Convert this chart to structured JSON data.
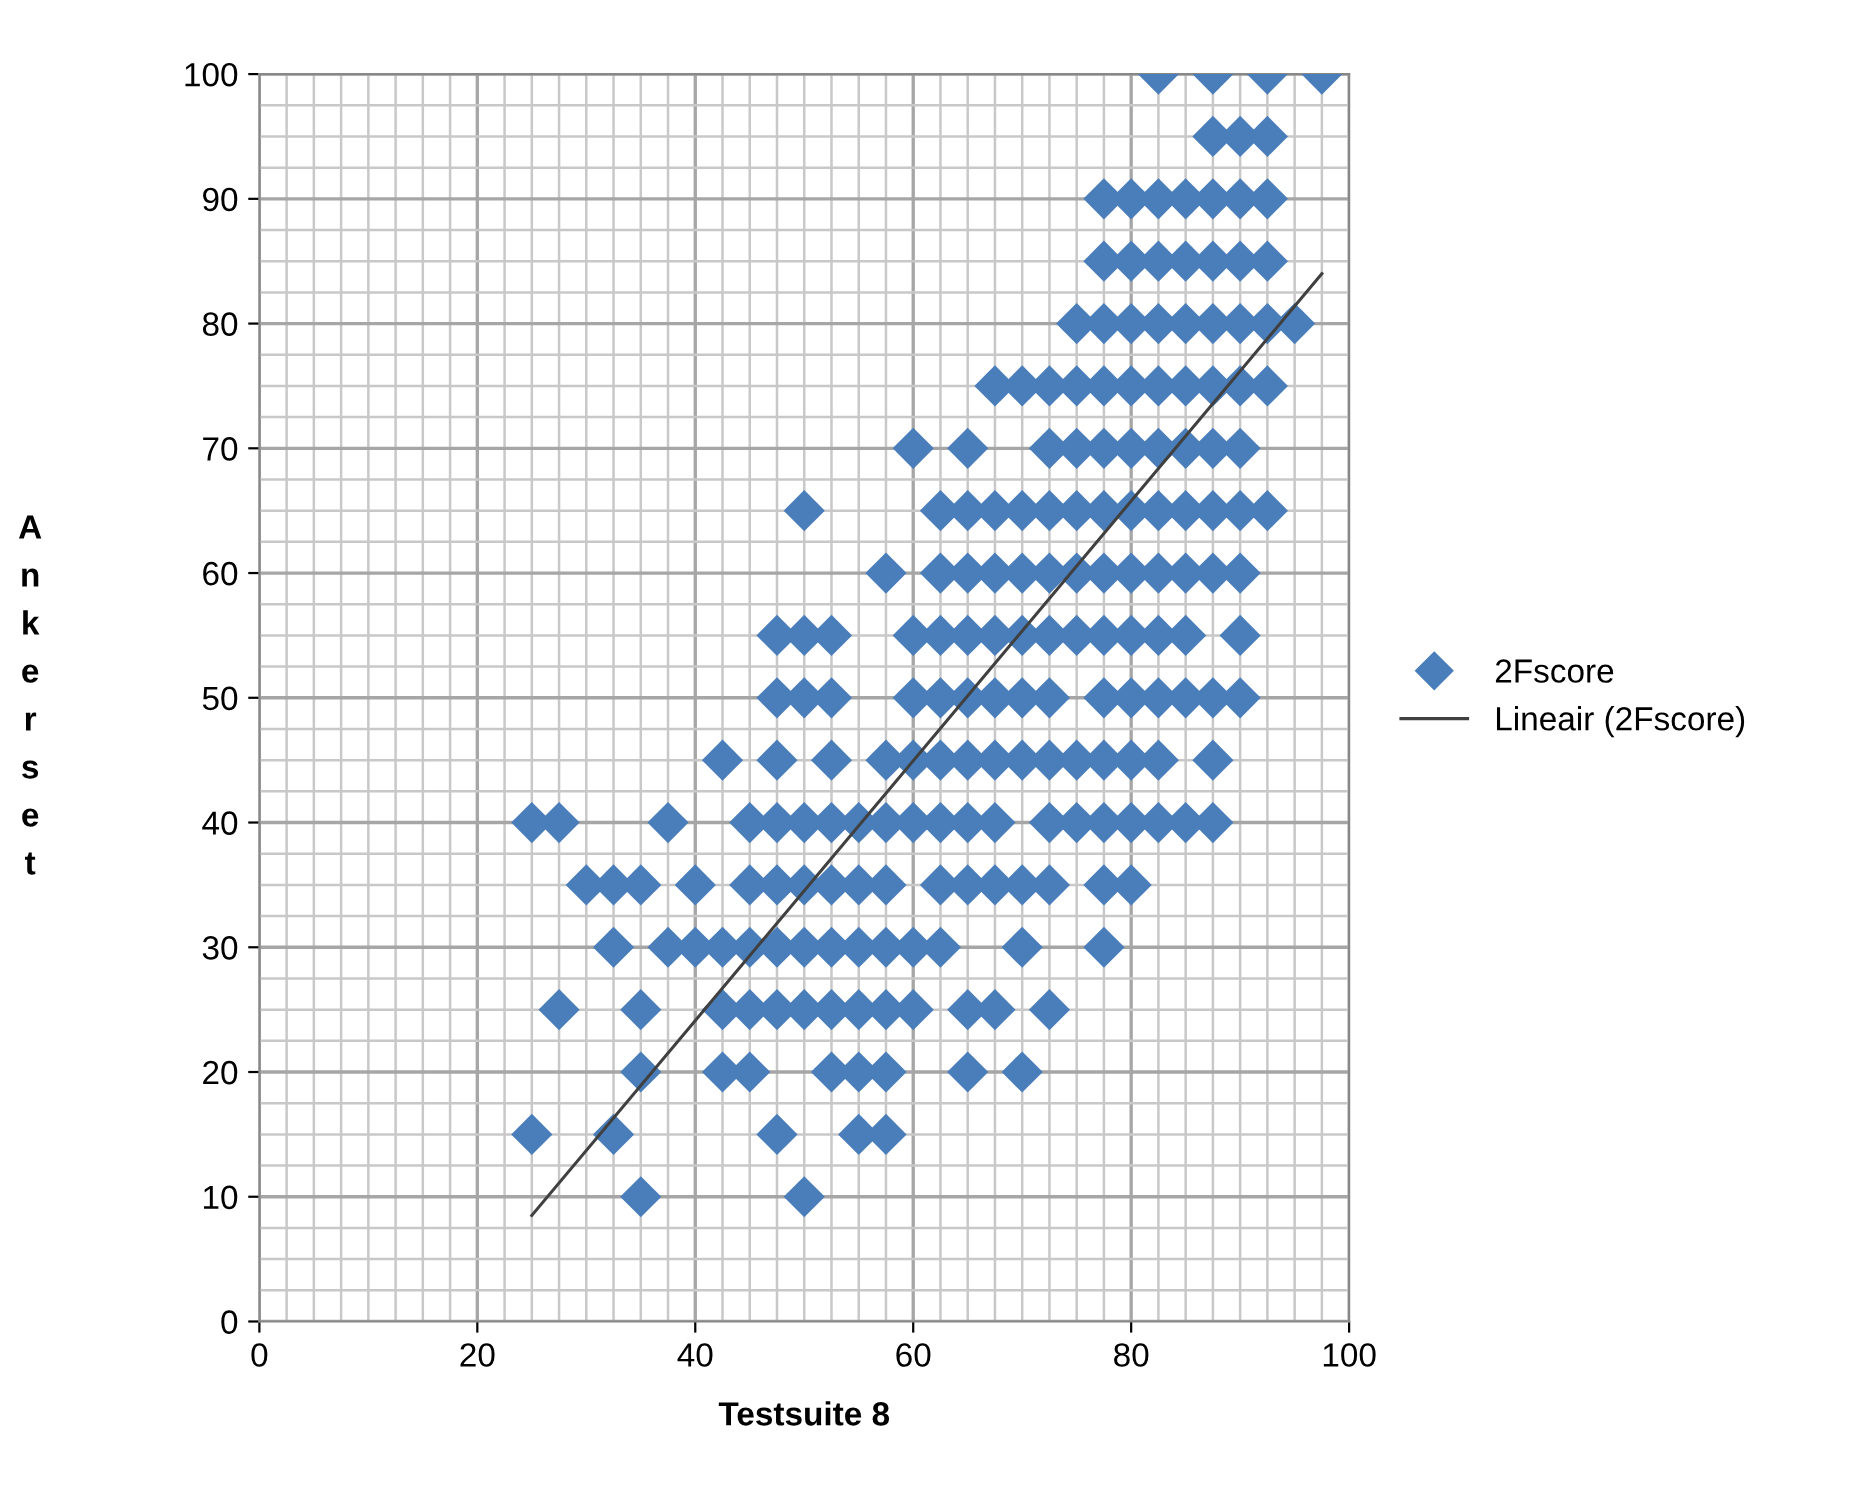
{
  "chart_data": {
    "type": "scatter",
    "xlabel": "Testsuite 8",
    "ylabel": "Ankerset",
    "xlim": [
      0,
      100
    ],
    "ylim": [
      0,
      100
    ],
    "xticks": [
      0,
      20,
      40,
      60,
      80,
      100
    ],
    "yticks": [
      0,
      10,
      20,
      30,
      40,
      50,
      60,
      70,
      80,
      90,
      100
    ],
    "grid": true,
    "legend": "right",
    "marker": "diamond",
    "series": [
      {
        "name": "2Fscore",
        "color": "#4a7ebb",
        "x": [
          82.5,
          87.5,
          92.5,
          97.5,
          87.5,
          90,
          92.5,
          77.5,
          80,
          82.5,
          85,
          87.5,
          90,
          92.5,
          77.5,
          80,
          82.5,
          85,
          87.5,
          90,
          92.5,
          75,
          77.5,
          80,
          82.5,
          85,
          87.5,
          90,
          92.5,
          95,
          67.5,
          70,
          72.5,
          75,
          77.5,
          80,
          82.5,
          85,
          87.5,
          90,
          92.5,
          60,
          65,
          72.5,
          75,
          77.5,
          80,
          82.5,
          85,
          87.5,
          90,
          50,
          62.5,
          65,
          67.5,
          70,
          72.5,
          75,
          77.5,
          80,
          82.5,
          85,
          87.5,
          90,
          92.5,
          57.5,
          62.5,
          65,
          67.5,
          70,
          72.5,
          75,
          77.5,
          80,
          82.5,
          85,
          87.5,
          90,
          47.5,
          50,
          52.5,
          60,
          62.5,
          65,
          67.5,
          70,
          72.5,
          75,
          77.5,
          80,
          82.5,
          85,
          90,
          47.5,
          50,
          52.5,
          60,
          62.5,
          65,
          67.5,
          70,
          72.5,
          77.5,
          80,
          82.5,
          85,
          87.5,
          90,
          42.5,
          47.5,
          52.5,
          57.5,
          60,
          62.5,
          65,
          67.5,
          70,
          72.5,
          75,
          77.5,
          80,
          82.5,
          87.5,
          25,
          27.5,
          37.5,
          45,
          47.5,
          50,
          52.5,
          55,
          57.5,
          60,
          62.5,
          65,
          67.5,
          72.5,
          75,
          77.5,
          80,
          82.5,
          85,
          87.5,
          30,
          32.5,
          35,
          40,
          45,
          47.5,
          50,
          52.5,
          55,
          57.5,
          62.5,
          65,
          67.5,
          70,
          72.5,
          77.5,
          80,
          32.5,
          37.5,
          40,
          42.5,
          45,
          47.5,
          50,
          52.5,
          55,
          57.5,
          60,
          62.5,
          70,
          77.5,
          27.5,
          35,
          42.5,
          45,
          47.5,
          50,
          52.5,
          55,
          57.5,
          60,
          65,
          67.5,
          72.5,
          35,
          42.5,
          45,
          52.5,
          55,
          57.5,
          65,
          70,
          25,
          32.5,
          47.5,
          55,
          57.5,
          35,
          50
        ],
        "values": [
          100,
          100,
          100,
          100,
          95,
          95,
          95,
          90,
          90,
          90,
          90,
          90,
          90,
          90,
          85,
          85,
          85,
          85,
          85,
          85,
          85,
          80,
          80,
          80,
          80,
          80,
          80,
          80,
          80,
          80,
          75,
          75,
          75,
          75,
          75,
          75,
          75,
          75,
          75,
          75,
          75,
          70,
          70,
          70,
          70,
          70,
          70,
          70,
          70,
          70,
          70,
          65,
          65,
          65,
          65,
          65,
          65,
          65,
          65,
          65,
          65,
          65,
          65,
          65,
          65,
          60,
          60,
          60,
          60,
          60,
          60,
          60,
          60,
          60,
          60,
          60,
          60,
          60,
          55,
          55,
          55,
          55,
          55,
          55,
          55,
          55,
          55,
          55,
          55,
          55,
          55,
          55,
          55,
          50,
          50,
          50,
          50,
          50,
          50,
          50,
          50,
          50,
          50,
          50,
          50,
          50,
          50,
          50,
          45,
          45,
          45,
          45,
          45,
          45,
          45,
          45,
          45,
          45,
          45,
          45,
          45,
          45,
          45,
          40,
          40,
          40,
          40,
          40,
          40,
          40,
          40,
          40,
          40,
          40,
          40,
          40,
          40,
          40,
          40,
          40,
          40,
          40,
          40,
          35,
          35,
          35,
          35,
          35,
          35,
          35,
          35,
          35,
          35,
          35,
          35,
          35,
          35,
          35,
          35,
          35,
          30,
          30,
          30,
          30,
          30,
          30,
          30,
          30,
          30,
          30,
          30,
          30,
          30,
          30,
          25,
          25,
          25,
          25,
          25,
          25,
          25,
          25,
          25,
          25,
          25,
          25,
          25,
          20,
          20,
          20,
          20,
          20,
          20,
          20,
          20,
          15,
          15,
          15,
          15,
          15,
          10,
          10
        ]
      },
      {
        "name": "Lineair (2Fscore)",
        "type": "line",
        "color": "#404040",
        "marker": "none",
        "line_style": "solid",
        "x": [
          25,
          97.5
        ],
        "values": [
          8.5,
          84
        ]
      }
    ]
  }
}
